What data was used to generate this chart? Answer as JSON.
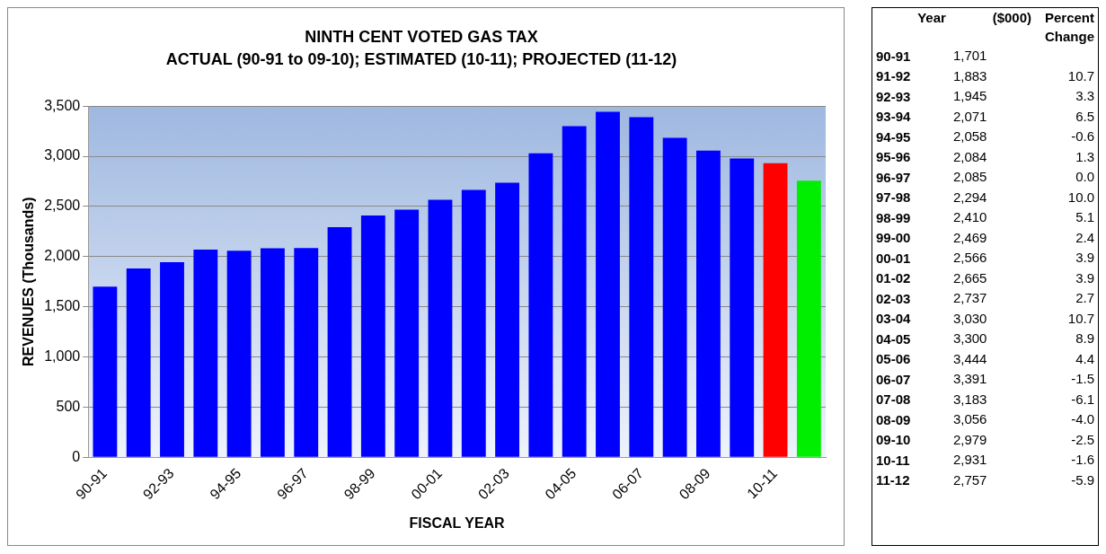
{
  "chart_data": [
    {
      "type": "bar",
      "title": "NINTH CENT VOTED GAS TAX",
      "subtitle": "ACTUAL (90-91 to 09-10); ESTIMATED (10-11); PROJECTED (11-12)",
      "xlabel": "FISCAL YEAR",
      "ylabel": "REVENUES (Thousands)",
      "categories": [
        "90-91",
        null,
        "92-93",
        null,
        "94-95",
        null,
        "96-97",
        null,
        "98-99",
        null,
        "00-01",
        null,
        "02-03",
        null,
        "04-05",
        null,
        "06-07",
        null,
        "08-09",
        null,
        "10-11",
        null
      ],
      "values": [
        1701,
        1883,
        1945,
        2071,
        2058,
        2084,
        2085,
        2294,
        2410,
        2469,
        2566,
        2665,
        2737,
        3030,
        3300,
        3444,
        3391,
        3183,
        3056,
        2979,
        2931,
        2757
      ],
      "colors": [
        "#0000ff",
        "#0000ff",
        "#0000ff",
        "#0000ff",
        "#0000ff",
        "#0000ff",
        "#0000ff",
        "#0000ff",
        "#0000ff",
        "#0000ff",
        "#0000ff",
        "#0000ff",
        "#0000ff",
        "#0000ff",
        "#0000ff",
        "#0000ff",
        "#0000ff",
        "#0000ff",
        "#0000ff",
        "#0000ff",
        "#ff0000",
        "#00ee00"
      ],
      "ylim": [
        0,
        3500
      ],
      "yticks": [
        0,
        500,
        {
          "value": 1000,
          "label": "1,000"
        },
        {
          "value": 1500,
          "label": "1,500"
        },
        {
          "value": 2000,
          "label": "2,000"
        },
        {
          "value": 2500,
          "label": "2,500"
        },
        {
          "value": 3000,
          "label": "3,000"
        },
        {
          "value": 3500,
          "label": "3,500"
        }
      ],
      "grid": "y",
      "legend": false
    },
    {
      "type": "other",
      "xlabel": "Year",
      "categories": [
        "90-91",
        "91-92",
        "92-93",
        "93-94",
        "94-95",
        "95-96",
        "96-97",
        "97-98",
        "98-99",
        "99-00",
        "00-01",
        "01-02",
        "02-03",
        "03-04",
        "04-05",
        "05-06",
        "06-07",
        "07-08",
        "08-09",
        "09-10",
        "10-11",
        "11-12"
      ],
      "series": [
        {
          "name": "($000)",
          "values": [
            1701,
            1883,
            1945,
            2071,
            2058,
            2084,
            2085,
            2294,
            2410,
            2469,
            2566,
            2665,
            2737,
            3030,
            3300,
            3444,
            3391,
            3183,
            3056,
            2979,
            2931,
            2757
          ],
          "value_labels": [
            "1,701",
            "1,883",
            "1,945",
            "2,071",
            "2,058",
            "2,084",
            "2,085",
            "2,294",
            "2,410",
            "2,469",
            "2,566",
            "2,665",
            "2,737",
            "3,030",
            "3,300",
            "3,444",
            "3,391",
            "3,183",
            "3,056",
            "2,979",
            "2,931",
            "2,757"
          ]
        },
        {
          "name": "Percent Change",
          "values": [
            null,
            10.7,
            3.3,
            6.5,
            -0.6,
            1.3,
            0.0,
            10.0,
            5.1,
            2.4,
            3.9,
            3.9,
            2.7,
            10.7,
            8.9,
            4.4,
            -1.5,
            -6.1,
            -4.0,
            -2.5,
            -1.6,
            -5.9
          ],
          "value_labels": [
            null,
            "10.7",
            "3.3",
            "6.5",
            "-0.6",
            "1.3",
            "0.0",
            "10.0",
            "5.1",
            "2.4",
            "3.9",
            "3.9",
            "2.7",
            "10.7",
            "8.9",
            "4.4",
            "-1.5",
            "-6.1",
            "-4.0",
            "-2.5",
            "-1.6",
            "-5.9"
          ]
        }
      ]
    }
  ]
}
